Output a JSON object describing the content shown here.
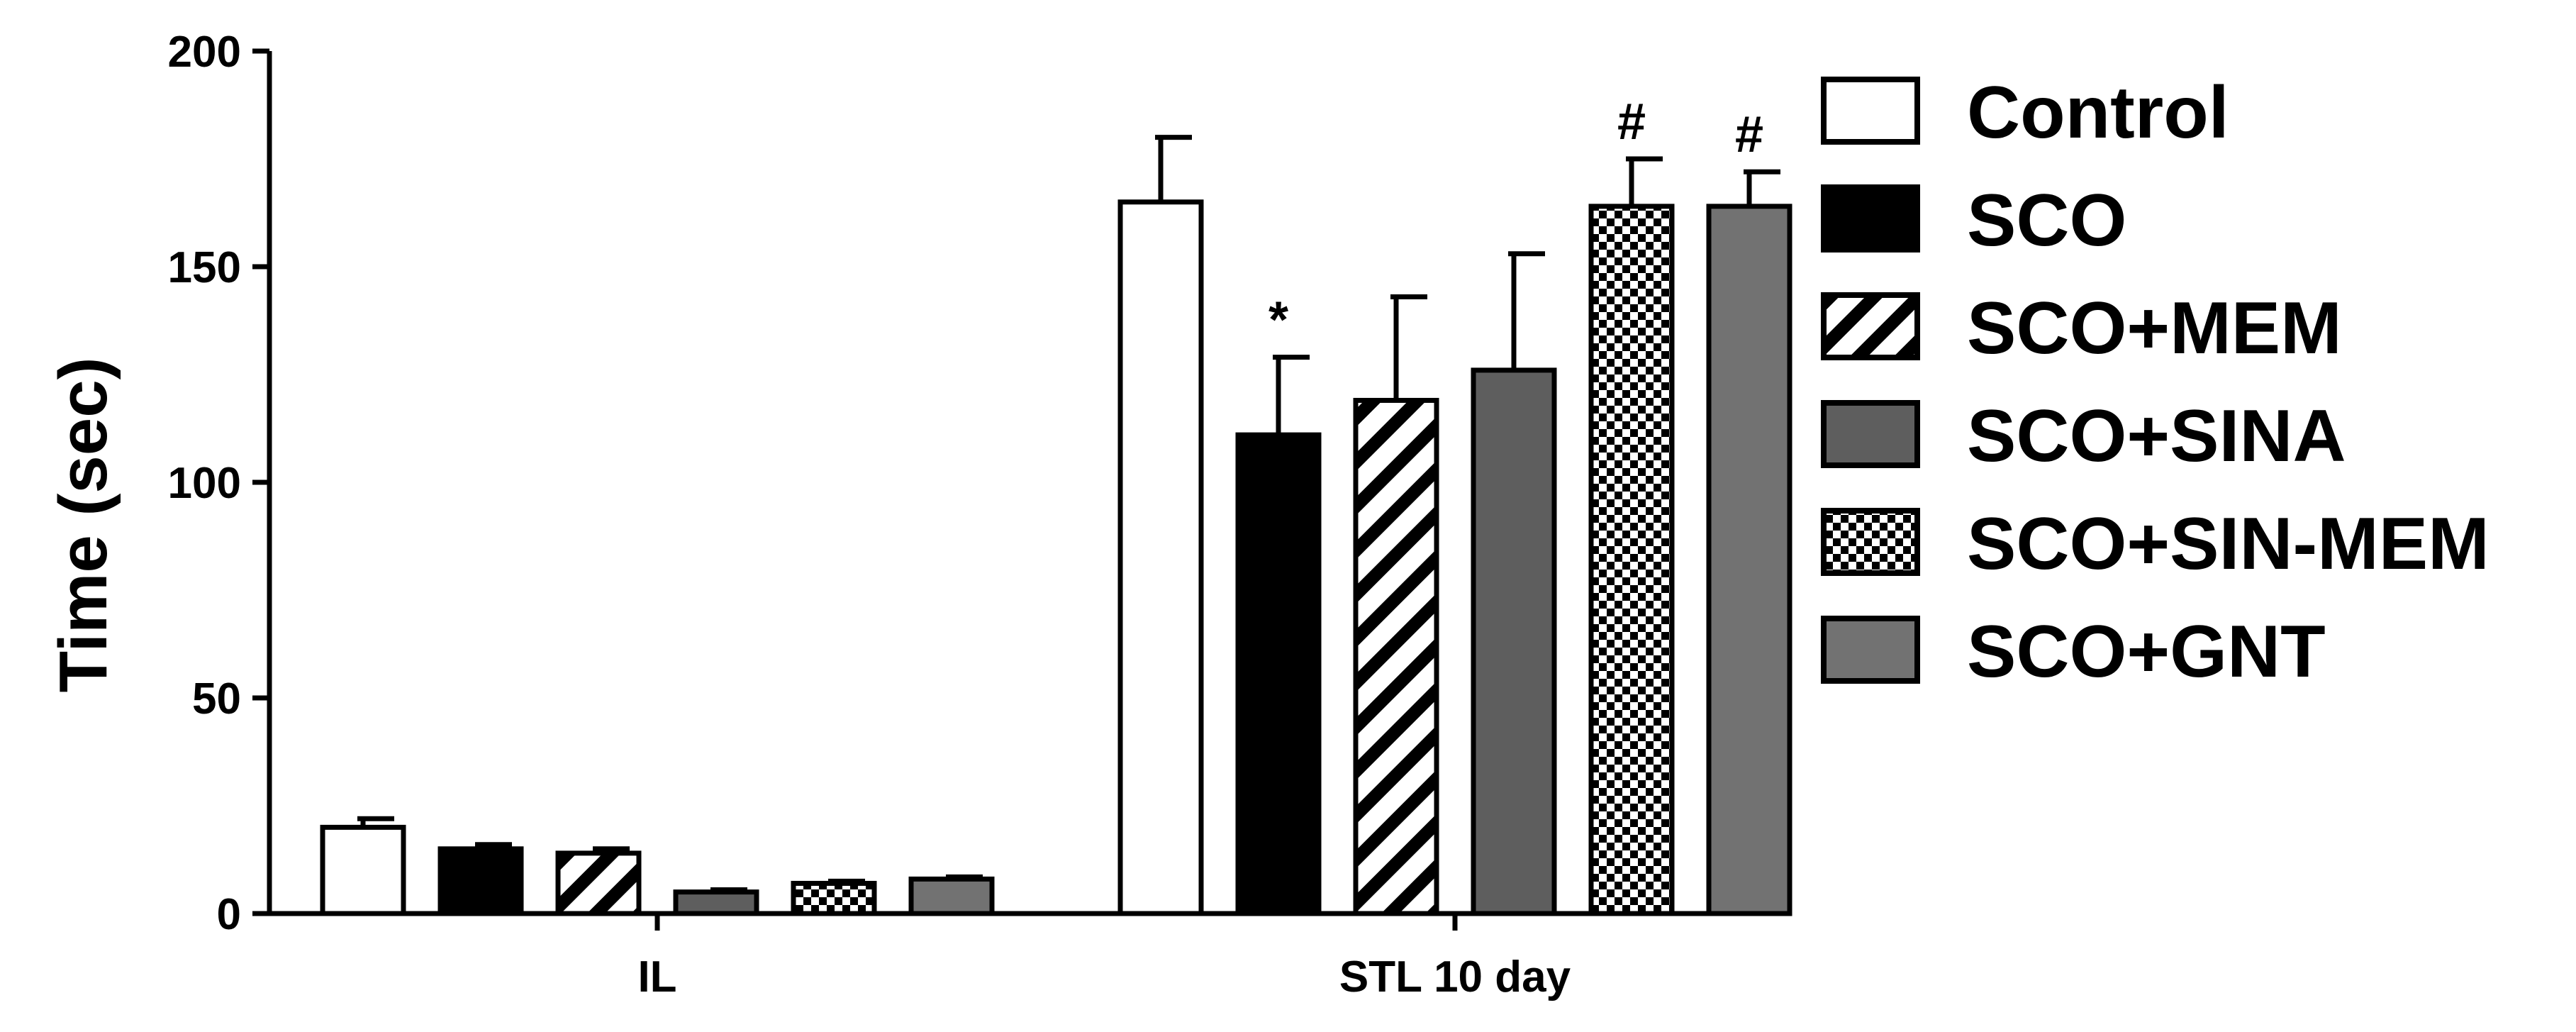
{
  "chart_data": {
    "type": "bar",
    "title": "",
    "xlabel": "",
    "ylabel": "Time (sec)",
    "ylim": [
      0,
      200
    ],
    "yticks": [
      0,
      50,
      100,
      150,
      200
    ],
    "grid": false,
    "legend_position": "right",
    "categories": [
      "IL",
      "STL 10 day"
    ],
    "series": [
      {
        "name": "Control",
        "values": [
          20,
          165
        ],
        "errors": [
          2,
          15
        ],
        "fill": "white",
        "annotations": [
          "",
          ""
        ]
      },
      {
        "name": "SCO",
        "values": [
          15,
          111
        ],
        "errors": [
          1,
          18
        ],
        "fill": "black",
        "annotations": [
          "",
          "*"
        ]
      },
      {
        "name": "SCO+MEM",
        "values": [
          14,
          119
        ],
        "errors": [
          1,
          24
        ],
        "fill": "hatch",
        "annotations": [
          "",
          ""
        ]
      },
      {
        "name": "SCO+SINA",
        "values": [
          5,
          126
        ],
        "errors": [
          0.5,
          27
        ],
        "fill": "darkgray",
        "annotations": [
          "",
          ""
        ]
      },
      {
        "name": "SCO+SIN-MEM",
        "values": [
          7,
          164
        ],
        "errors": [
          0.5,
          11
        ],
        "fill": "checker",
        "annotations": [
          "",
          "#"
        ]
      },
      {
        "name": "SCO+GNT",
        "values": [
          8,
          164
        ],
        "errors": [
          0.5,
          8
        ],
        "fill": "gray",
        "annotations": [
          "",
          "#"
        ]
      }
    ],
    "colors": {
      "black": "#000000",
      "white": "#ffffff",
      "darkgray": "#5e5e5e",
      "gray": "#727272"
    }
  }
}
